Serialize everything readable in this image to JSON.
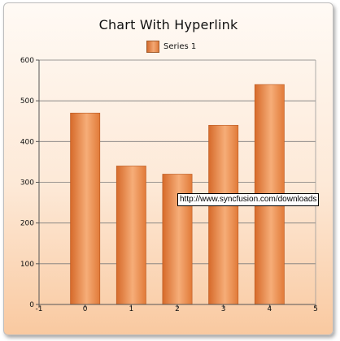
{
  "chart_data": {
    "type": "bar",
    "title": "Chart With Hyperlink",
    "legend": {
      "position": "top-center",
      "entries": [
        "Series 1"
      ]
    },
    "x": [
      0,
      1,
      2,
      3,
      4
    ],
    "series": [
      {
        "name": "Series 1",
        "values": [
          470,
          340,
          320,
          440,
          540
        ]
      }
    ],
    "xlim": [
      -1,
      5
    ],
    "ylim": [
      0,
      600
    ],
    "x_ticks": [
      -1,
      0,
      1,
      2,
      3,
      4,
      5
    ],
    "y_ticks": [
      0,
      100,
      200,
      300,
      400,
      500,
      600
    ],
    "grid": true,
    "colors": {
      "bar": "#e8864a",
      "bar_light": "#f7b17f",
      "bar_dark": "#c95e22",
      "grid": "#7a7a7a"
    },
    "tooltip": "http://www.syncfusion.com/downloads"
  }
}
